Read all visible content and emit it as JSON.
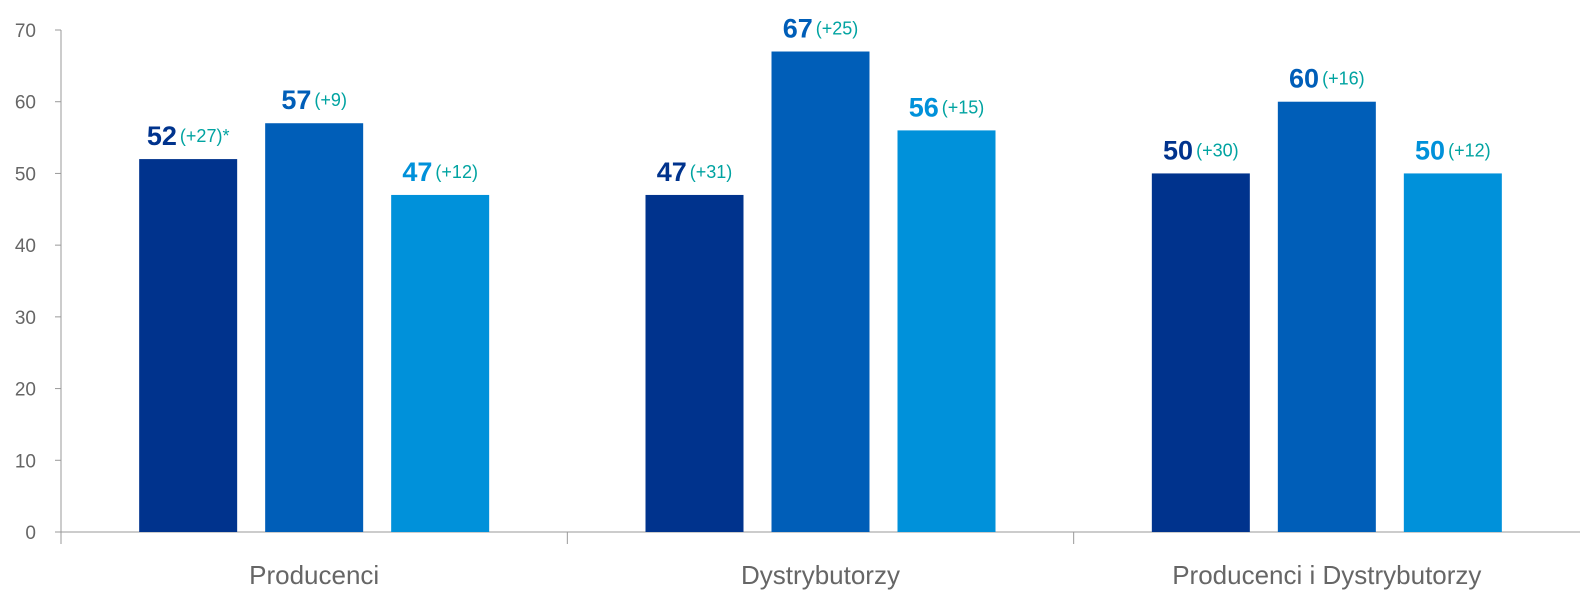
{
  "chart_data": {
    "type": "bar",
    "categories": [
      "Producenci",
      "Dystrybutorzy",
      "Producenci i Dystrybutorzy"
    ],
    "series": [
      {
        "color": "#00338D",
        "values": [
          52,
          47,
          50
        ],
        "labels": [
          "52",
          "47",
          "50"
        ],
        "deltas": [
          "(+27)*",
          "(+31)",
          "(+30)"
        ]
      },
      {
        "color": "#005EB8",
        "values": [
          57,
          67,
          60
        ],
        "labels": [
          "57",
          "67",
          "60"
        ],
        "deltas": [
          "(+9)",
          "(+25)",
          "(+16)"
        ]
      },
      {
        "color": "#0091DA",
        "values": [
          47,
          56,
          50
        ],
        "labels": [
          "47",
          "56",
          "50"
        ],
        "deltas": [
          "(+12)",
          "(+15)",
          "(+12)"
        ]
      }
    ],
    "yticks": [
      "0",
      "10",
      "20",
      "30",
      "40",
      "50",
      "60",
      "70"
    ],
    "ylim": [
      0,
      70
    ],
    "delta_color": "#00A3A1",
    "axis_color": "#999999",
    "grid": false,
    "legend": "none"
  }
}
